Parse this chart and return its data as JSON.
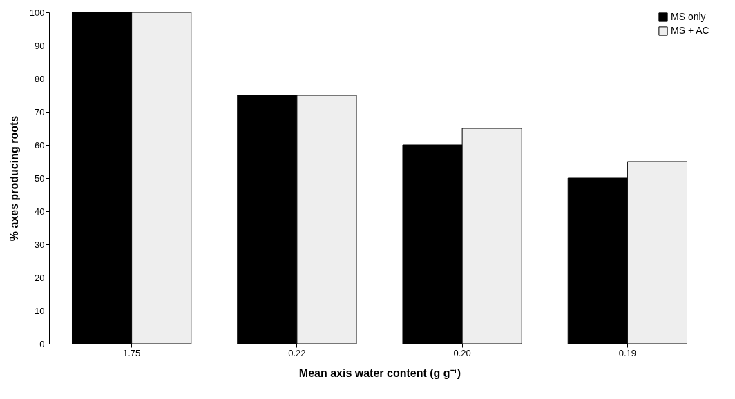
{
  "chart_data": {
    "type": "bar",
    "xlabel": "Mean axis water content (g g⁻¹)",
    "ylabel": "% axes producing roots",
    "categories": [
      "1.75",
      "0.22",
      "0.20",
      "0.19"
    ],
    "series": [
      {
        "name": "MS only",
        "color": "#000000",
        "values": [
          100,
          75,
          60,
          50
        ]
      },
      {
        "name": "MS + AC",
        "color": "#eeeeee",
        "values": [
          100,
          75,
          65,
          55
        ]
      }
    ],
    "ylim": [
      0,
      100
    ],
    "yticks": [
      0,
      10,
      20,
      30,
      40,
      50,
      60,
      70,
      80,
      90,
      100
    ],
    "grid": false,
    "legend": "top right"
  }
}
